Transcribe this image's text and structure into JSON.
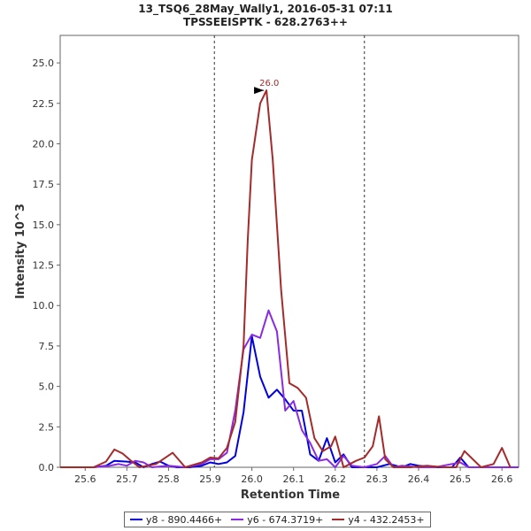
{
  "chart_data": {
    "type": "line",
    "title": "13_TSQ6_28May_Wally1, 2016-05-31 07:11",
    "subtitle": "TPSSEEISPTK - 628.2763++",
    "xlabel": "Retention Time",
    "ylabel": "Intensity 10^3",
    "xlim": [
      25.54,
      26.64
    ],
    "ylim": [
      0,
      26.7
    ],
    "x_ticks": [
      "25.6",
      "25.7",
      "25.8",
      "25.9",
      "26.0",
      "26.1",
      "26.2",
      "26.3",
      "26.4",
      "26.5",
      "26.6"
    ],
    "y_ticks": [
      "0.0",
      "2.5",
      "5.0",
      "7.5",
      "10.0",
      "12.5",
      "15.0",
      "17.5",
      "20.0",
      "22.5",
      "25.0"
    ],
    "integration_bounds": [
      25.91,
      26.27
    ],
    "peak_annotation": {
      "label": "26.0",
      "x": 26.035,
      "y": 23.3
    },
    "series": [
      {
        "name": "y8 - 890.4466+",
        "color": "#0000e0",
        "x": [
          25.54,
          25.62,
          25.65,
          25.67,
          25.7,
          25.72,
          25.74,
          25.76,
          25.78,
          25.8,
          25.82,
          25.85,
          25.88,
          25.9,
          25.92,
          25.94,
          25.96,
          25.98,
          26.0,
          26.02,
          26.04,
          26.06,
          26.08,
          26.1,
          26.12,
          26.14,
          26.16,
          26.18,
          26.2,
          26.22,
          26.24,
          26.27,
          26.3,
          26.33,
          26.36,
          26.38,
          26.4,
          26.44,
          26.48,
          26.5,
          26.52,
          26.56,
          26.6,
          26.64
        ],
        "y": [
          0.0,
          0.0,
          0.1,
          0.4,
          0.35,
          0.3,
          0.0,
          0.2,
          0.35,
          0.1,
          0.0,
          0.0,
          0.1,
          0.3,
          0.2,
          0.3,
          0.7,
          3.4,
          8.1,
          5.6,
          4.3,
          4.8,
          4.2,
          3.5,
          3.5,
          0.8,
          0.4,
          1.8,
          0.3,
          0.8,
          0.0,
          0.0,
          0.0,
          0.2,
          0.0,
          0.2,
          0.1,
          0.0,
          0.0,
          0.6,
          0.0,
          0.0,
          0.0,
          0.0
        ]
      },
      {
        "name": "y6 - 674.3719+",
        "color": "#8a2be2",
        "x": [
          25.54,
          25.62,
          25.66,
          25.68,
          25.7,
          25.72,
          25.74,
          25.76,
          25.8,
          25.84,
          25.88,
          25.9,
          25.92,
          25.94,
          25.96,
          25.98,
          26.0,
          26.02,
          26.04,
          26.06,
          26.08,
          26.1,
          26.12,
          26.14,
          26.16,
          26.18,
          26.2,
          26.22,
          26.24,
          26.27,
          26.3,
          26.32,
          26.34,
          26.36,
          26.4,
          26.44,
          26.48,
          26.5,
          26.52,
          26.56,
          26.6,
          26.64
        ],
        "y": [
          0.0,
          0.0,
          0.1,
          0.2,
          0.1,
          0.4,
          0.3,
          0.0,
          0.1,
          0.0,
          0.2,
          0.5,
          0.5,
          0.9,
          3.5,
          7.3,
          8.2,
          8.0,
          9.7,
          8.4,
          3.5,
          4.1,
          2.3,
          1.5,
          0.4,
          0.5,
          0.0,
          0.7,
          0.1,
          0.0,
          0.2,
          0.7,
          0.0,
          0.1,
          0.0,
          0.0,
          0.2,
          0.3,
          0.0,
          0.0,
          0.0,
          0.0
        ]
      },
      {
        "name": "y4 - 432.2453+",
        "color": "#a52a2a",
        "x": [
          25.54,
          25.62,
          25.65,
          25.67,
          25.69,
          25.71,
          25.73,
          25.75,
          25.77,
          25.79,
          25.81,
          25.84,
          25.88,
          25.9,
          25.92,
          25.94,
          25.96,
          25.98,
          25.99,
          26.0,
          26.02,
          26.035,
          26.05,
          26.07,
          26.09,
          26.11,
          26.13,
          26.15,
          26.17,
          26.19,
          26.2,
          26.22,
          26.25,
          26.27,
          26.29,
          26.305,
          26.32,
          26.34,
          26.38,
          26.42,
          26.46,
          26.49,
          26.51,
          26.55,
          26.58,
          26.6,
          26.62
        ],
        "y": [
          0.0,
          0.0,
          0.35,
          1.1,
          0.85,
          0.4,
          0.0,
          0.1,
          0.2,
          0.55,
          0.9,
          0.0,
          0.3,
          0.6,
          0.55,
          1.2,
          2.8,
          7.5,
          14.0,
          19.0,
          22.5,
          23.3,
          19.0,
          11.0,
          5.2,
          4.9,
          4.3,
          1.8,
          1.0,
          1.3,
          1.9,
          0.0,
          0.4,
          0.6,
          1.3,
          3.15,
          0.5,
          0.0,
          0.0,
          0.1,
          0.0,
          0.0,
          1.0,
          0.0,
          0.2,
          1.2,
          0.0
        ]
      }
    ]
  }
}
